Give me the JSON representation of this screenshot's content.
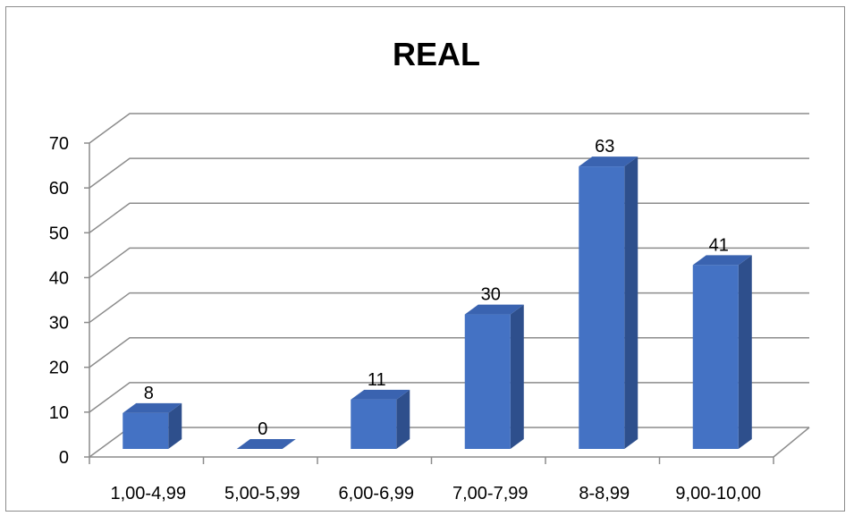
{
  "chart_data": {
    "type": "bar",
    "title": "REAL",
    "categories": [
      "1,00-4,99",
      "5,00-5,99",
      "6,00-6,99",
      "7,00-7,99",
      "8-8,99",
      "9,00-10,00"
    ],
    "values": [
      8,
      0,
      11,
      30,
      63,
      41
    ],
    "data_labels": [
      "8",
      "0",
      "11",
      "30",
      "63",
      "41"
    ],
    "y_ticks": [
      "0",
      "10",
      "20",
      "30",
      "40",
      "50",
      "60",
      "70"
    ],
    "ylim": [
      0,
      70
    ],
    "grid": true,
    "legend": "none",
    "style": "3d-column"
  },
  "colors": {
    "bar_front": "#4472c4",
    "bar_side": "#2e4f8c",
    "bar_top": "#3a63b0",
    "grid": "#8c8c8c",
    "border": "#8c8c8c"
  }
}
